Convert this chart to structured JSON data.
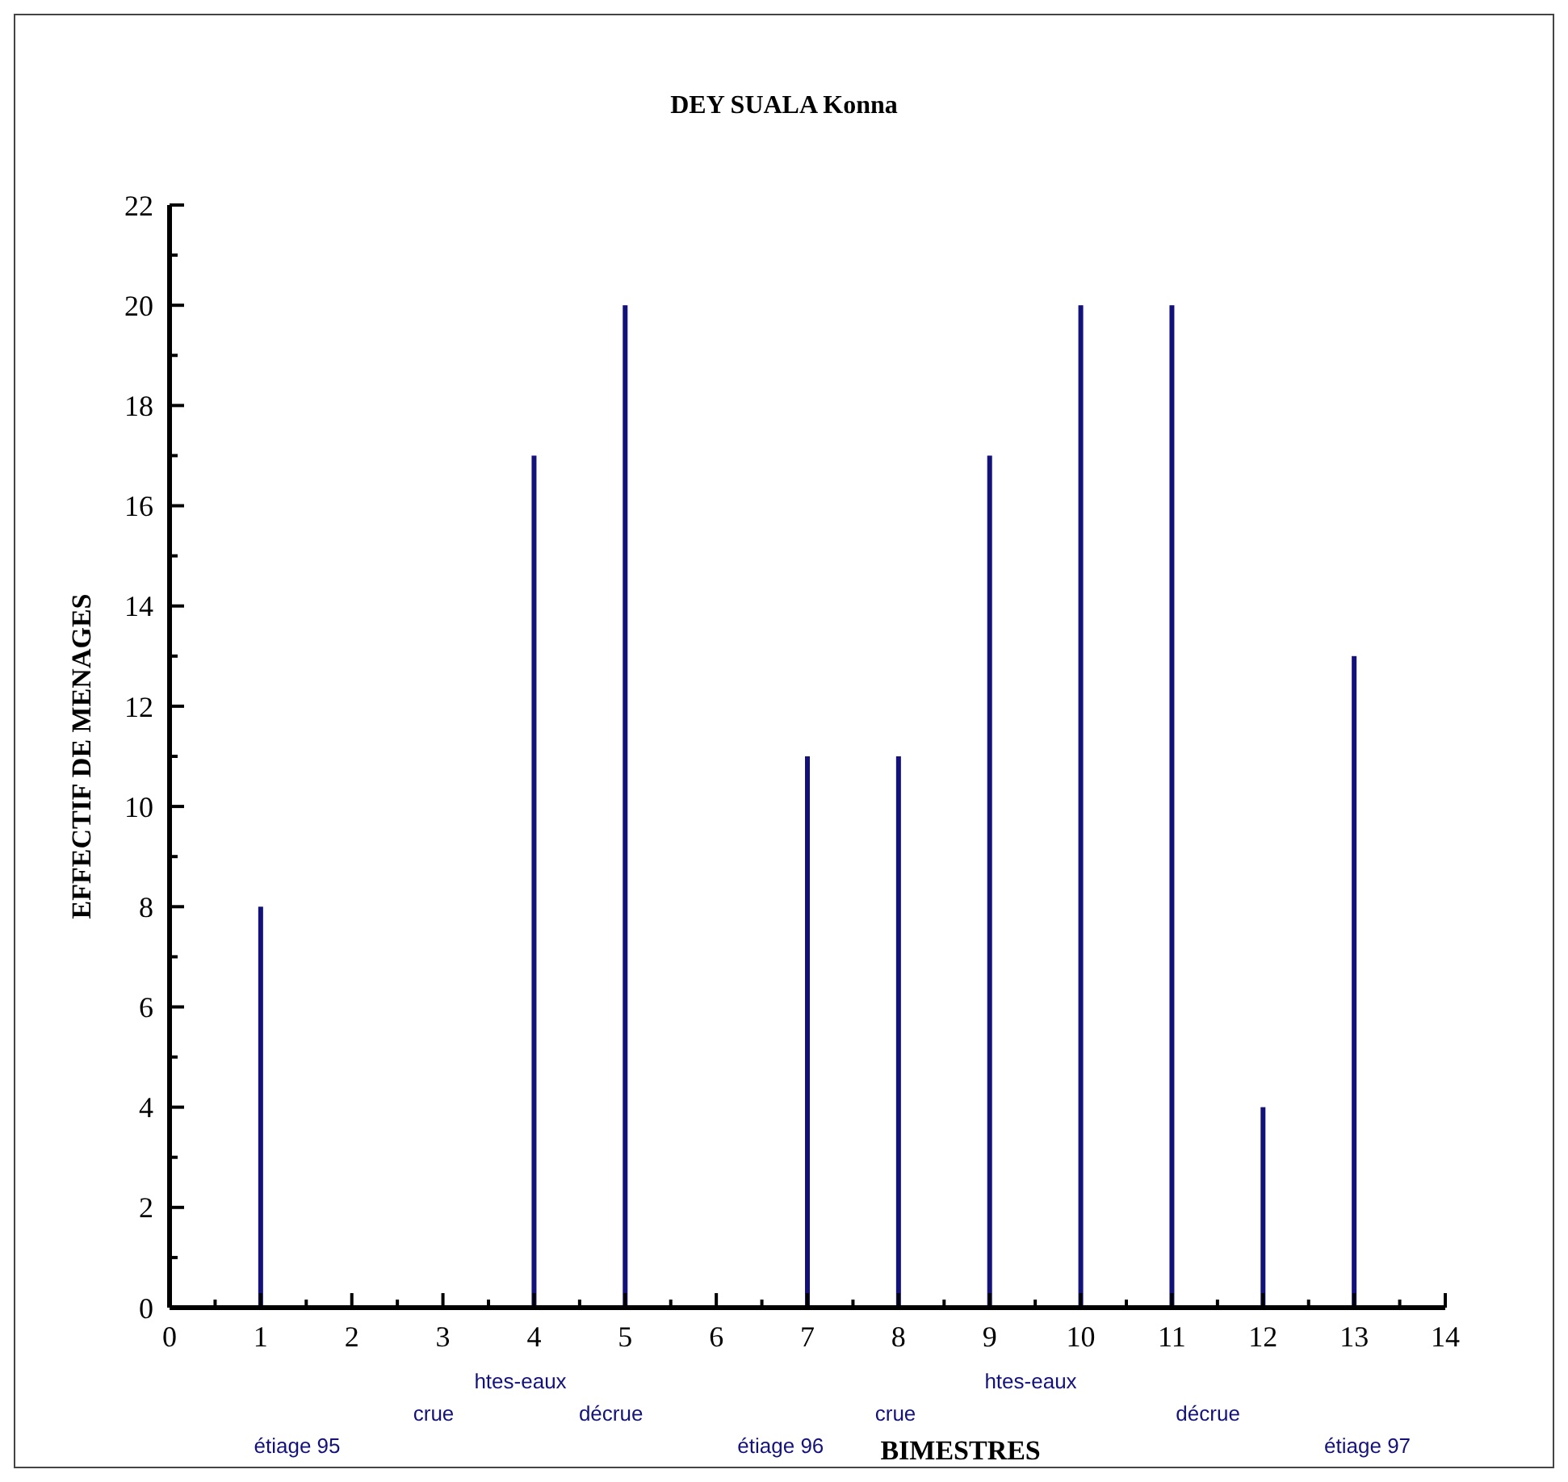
{
  "chart_data": {
    "type": "bar",
    "title": "DEY SUALA Konna",
    "xlabel": "BIMESTRES",
    "ylabel": "EFFECTIF DE MENAGES",
    "x": [
      1,
      2,
      3,
      4,
      5,
      6,
      7,
      8,
      9,
      10,
      11,
      12,
      13
    ],
    "values": [
      8,
      0,
      0,
      17,
      20,
      0,
      11,
      11,
      17,
      20,
      20,
      4,
      13
    ],
    "color": "#12127a",
    "xlim": [
      0,
      14
    ],
    "xticks": [
      0,
      {
        "value": 0.5,
        "label": null
      },
      1,
      {
        "value": 1.5,
        "label": null
      },
      2,
      {
        "value": 2.5,
        "label": null
      },
      3,
      {
        "value": 3.5,
        "label": null
      },
      4,
      {
        "value": 4.5,
        "label": null
      },
      5,
      {
        "value": 5.5,
        "label": null
      },
      6,
      {
        "value": 6.5,
        "label": null
      },
      7,
      {
        "value": 7.5,
        "label": null
      },
      8,
      {
        "value": 8.5,
        "label": null
      },
      9,
      {
        "value": 9.5,
        "label": null
      },
      10,
      {
        "value": 10.5,
        "label": null
      },
      11,
      {
        "value": 11.5,
        "label": null
      },
      12,
      {
        "value": 12.5,
        "label": null
      },
      13,
      {
        "value": 13.5,
        "label": null
      },
      14
    ],
    "ylim": [
      0,
      22
    ],
    "yticks": [
      0,
      {
        "value": 1,
        "label": null
      },
      2,
      {
        "value": 3,
        "label": null
      },
      4,
      {
        "value": 5,
        "label": null
      },
      6,
      {
        "value": 7,
        "label": null
      },
      8,
      {
        "value": 9,
        "label": null
      },
      10,
      {
        "value": 11,
        "label": null
      },
      12,
      {
        "value": 13,
        "label": null
      },
      14,
      {
        "value": 15,
        "label": null
      },
      16,
      {
        "value": 17,
        "label": null
      },
      18,
      {
        "value": 19,
        "label": null
      },
      20,
      {
        "value": 21,
        "label": null
      },
      22
    ],
    "grid": false,
    "annotations": [
      "étiage 95",
      "crue",
      "htes-eaux",
      "décrue",
      "étiage 96",
      "crue",
      "htes-eaux",
      "décrue",
      "étiage 97"
    ]
  }
}
